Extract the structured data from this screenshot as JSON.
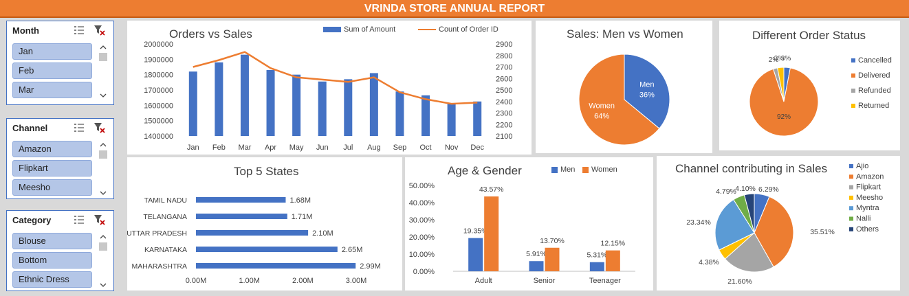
{
  "report_title": "VRINDA STORE ANNUAL REPORT",
  "colors": {
    "blue": "#4472c4",
    "orange": "#ed7d31",
    "gray": "#a5a5a5",
    "yellow": "#ffc000",
    "lightblue": "#5b9bd5",
    "green": "#70ad47",
    "navy": "#264478",
    "banner": "#ed7d31"
  },
  "slicers": [
    {
      "title": "Month",
      "items": [
        "Jan",
        "Feb",
        "Mar"
      ],
      "icons": [
        "multi-select-icon",
        "clear-filter-icon"
      ]
    },
    {
      "title": "Channel",
      "items": [
        "Amazon",
        "Flipkart",
        "Meesho"
      ],
      "icons": [
        "multi-select-icon",
        "clear-filter-icon"
      ]
    },
    {
      "title": "Category",
      "items": [
        "Blouse",
        "Bottom",
        "Ethnic Dress"
      ],
      "icons": [
        "multi-select-icon",
        "clear-filter-icon"
      ]
    }
  ],
  "chart_data": [
    {
      "type": "bar",
      "title": "Orders vs Sales",
      "categories": [
        "Jan",
        "Feb",
        "Mar",
        "Apr",
        "May",
        "Jun",
        "Jul",
        "Aug",
        "Sep",
        "Oct",
        "Nov",
        "Dec"
      ],
      "series": [
        {
          "name": "Sum of Amount",
          "type": "bar",
          "axis": "left",
          "values": [
            1820000,
            1880000,
            1930000,
            1830000,
            1800000,
            1755000,
            1770000,
            1810000,
            1690000,
            1665000,
            1615000,
            1625000
          ]
        },
        {
          "name": "Count of Order ID",
          "type": "line",
          "axis": "right",
          "values": [
            2700,
            2760,
            2830,
            2690,
            2610,
            2590,
            2570,
            2610,
            2480,
            2420,
            2380,
            2390
          ]
        }
      ],
      "y_left": {
        "ylim": [
          1400000,
          2000000
        ],
        "ticks": [
          "2000000",
          "1900000",
          "1800000",
          "1700000",
          "1600000",
          "1500000",
          "1400000"
        ]
      },
      "y_right": {
        "ylim": [
          2100,
          2900
        ],
        "ticks": [
          "2900",
          "2800",
          "2700",
          "2600",
          "2500",
          "2400",
          "2300",
          "2200",
          "2100"
        ]
      },
      "legend": "top"
    },
    {
      "type": "pie",
      "title": "Sales: Men vs Women",
      "labels": [
        "Men",
        "Women"
      ],
      "values": [
        36,
        64
      ],
      "data_labels": [
        "36%",
        "64%"
      ]
    },
    {
      "type": "pie",
      "title": "Different Order Status",
      "labels": [
        "Cancelled",
        "Delivered",
        "Refunded",
        "Returned"
      ],
      "values": [
        3,
        92,
        2,
        3
      ],
      "data_labels": [
        "3%",
        "92%",
        "2%",
        "3%"
      ],
      "legend": "right"
    },
    {
      "type": "bar",
      "orientation": "horizontal",
      "title": "Top 5 States",
      "categories": [
        "TAMIL NADU",
        "TELANGANA",
        "UTTAR PRADESH",
        "KARNATAKA",
        "MAHARASHTRA"
      ],
      "values": [
        1.68,
        1.71,
        2.1,
        2.65,
        2.99
      ],
      "data_labels": [
        "1.68M",
        "1.71M",
        "2.10M",
        "2.65M",
        "2.99M"
      ],
      "xlim": [
        0,
        3
      ],
      "ticks": [
        "0.00M",
        "1.00M",
        "2.00M",
        "3.00M"
      ]
    },
    {
      "type": "bar",
      "title": "Age & Gender",
      "categories": [
        "Adult",
        "Senior",
        "Teenager"
      ],
      "series": [
        {
          "name": "Men",
          "values": [
            19.35,
            5.91,
            5.31
          ],
          "data_labels": [
            "19.35%",
            "5.91%",
            "5.31%"
          ]
        },
        {
          "name": "Women",
          "values": [
            43.57,
            13.7,
            12.15
          ],
          "data_labels": [
            "43.57%",
            "13.70%",
            "12.15%"
          ]
        }
      ],
      "ylim": [
        0,
        50
      ],
      "ticks": [
        "50.00%",
        "40.00%",
        "30.00%",
        "20.00%",
        "10.00%",
        "0.00%"
      ],
      "legend": "top"
    },
    {
      "type": "pie",
      "title": "Channel contributing in Sales",
      "labels": [
        "Ajio",
        "Amazon",
        "Flipkart",
        "Meesho",
        "Myntra",
        "Nalli",
        "Others"
      ],
      "values": [
        6.29,
        35.51,
        21.6,
        4.38,
        23.34,
        4.79,
        4.1
      ],
      "data_labels": [
        "6.29%",
        "35.51%",
        "21.60%",
        "4.38%",
        "23.34%",
        "4.79%",
        "4.10%"
      ],
      "legend": "right"
    }
  ]
}
